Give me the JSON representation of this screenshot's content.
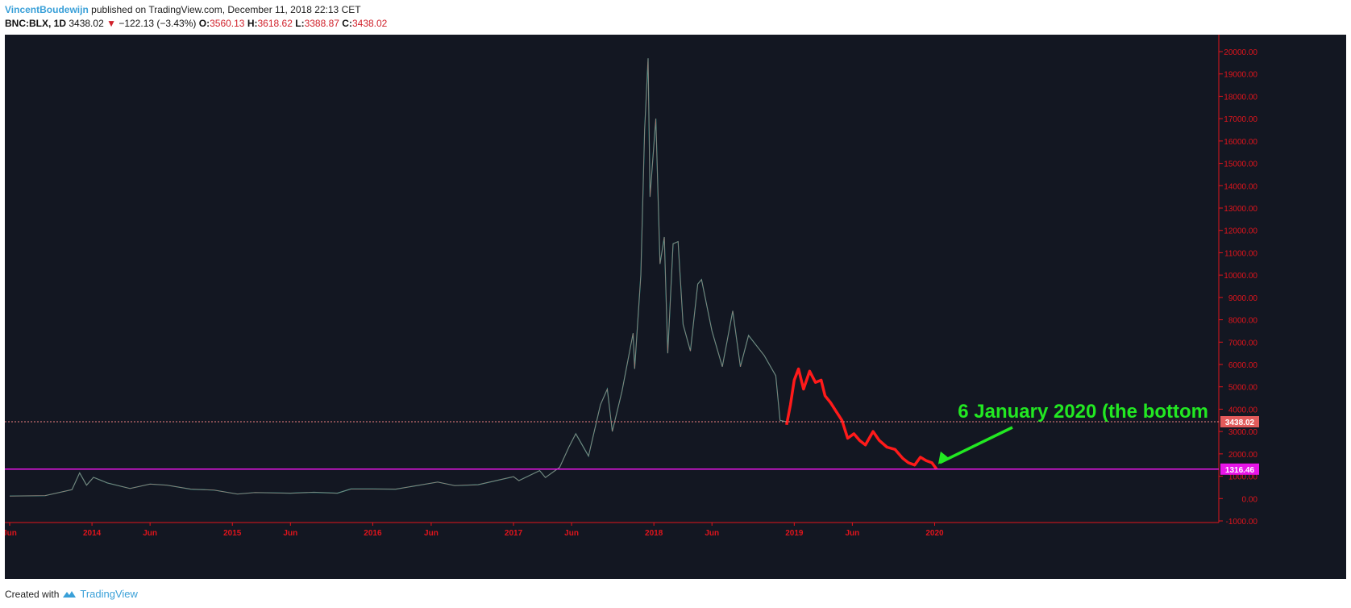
{
  "header": {
    "author": "VincentBoudewijn",
    "published": "published on TradingView.com, December 11, 2018 22:13 CET",
    "symbol": "BNC:BLX, 1D",
    "last": "3438.02",
    "change": "−122.13 (−3.43%)",
    "o_label": "O:",
    "o_value": "3560.13",
    "h_label": "H:",
    "h_value": "3618.62",
    "l_label": "L:",
    "l_value": "3388.87",
    "c_label": "C:",
    "c_value": "3438.02"
  },
  "footer": {
    "created_with": "Created with",
    "brand": "TradingView"
  },
  "colors": {
    "background": "#131722",
    "axis_red": "#e0141c",
    "projection": "#ff1a1a",
    "annotation": "#22e822",
    "support_line": "#e815e8",
    "price_line": "#f08080"
  },
  "chart_data": {
    "type": "line",
    "x_axis_type": "date",
    "y_range": [
      -1000,
      20000
    ],
    "x_range": [
      "2013-06-01",
      "2020-06-01"
    ],
    "y_ticks": [
      "20000.00",
      "19000.00",
      "18000.00",
      "17000.00",
      "16000.00",
      "15000.00",
      "14000.00",
      "13000.00",
      "12000.00",
      "11000.00",
      "10000.00",
      "9000.00",
      "8000.00",
      "7000.00",
      "6000.00",
      "5000.00",
      "4000.00",
      "3000.00",
      "2000.00",
      "1000.00",
      "0.00",
      "-1000.00"
    ],
    "x_ticks": [
      {
        "label": "Jun",
        "date": "2013-06-01"
      },
      {
        "label": "2014",
        "date": "2014-01-01"
      },
      {
        "label": "Jun",
        "date": "2014-06-01"
      },
      {
        "label": "2015",
        "date": "2015-01-01"
      },
      {
        "label": "Jun",
        "date": "2015-06-01"
      },
      {
        "label": "2016",
        "date": "2016-01-01"
      },
      {
        "label": "Jun",
        "date": "2016-06-01"
      },
      {
        "label": "2017",
        "date": "2017-01-01"
      },
      {
        "label": "Jun",
        "date": "2017-06-01"
      },
      {
        "label": "2018",
        "date": "2018-01-01"
      },
      {
        "label": "Jun",
        "date": "2018-06-01"
      },
      {
        "label": "2019",
        "date": "2019-01-01"
      },
      {
        "label": "Jun",
        "date": "2019-06-01"
      },
      {
        "label": "2020",
        "date": "2020-01-01"
      }
    ],
    "series": [
      {
        "role": "price",
        "points": [
          [
            "2013-06-01",
            110
          ],
          [
            "2013-09-01",
            130
          ],
          [
            "2013-11-10",
            400
          ],
          [
            "2013-11-30",
            1150
          ],
          [
            "2013-12-18",
            600
          ],
          [
            "2014-01-05",
            950
          ],
          [
            "2014-02-10",
            700
          ],
          [
            "2014-04-10",
            450
          ],
          [
            "2014-06-01",
            650
          ],
          [
            "2014-07-15",
            600
          ],
          [
            "2014-09-15",
            420
          ],
          [
            "2014-11-15",
            380
          ],
          [
            "2015-01-14",
            200
          ],
          [
            "2015-03-01",
            270
          ],
          [
            "2015-06-01",
            240
          ],
          [
            "2015-08-01",
            280
          ],
          [
            "2015-10-01",
            240
          ],
          [
            "2015-11-05",
            430
          ],
          [
            "2016-01-01",
            430
          ],
          [
            "2016-03-01",
            420
          ],
          [
            "2016-06-18",
            740
          ],
          [
            "2016-08-01",
            580
          ],
          [
            "2016-10-01",
            620
          ],
          [
            "2017-01-01",
            980
          ],
          [
            "2017-01-15",
            800
          ],
          [
            "2017-03-10",
            1250
          ],
          [
            "2017-03-25",
            940
          ],
          [
            "2017-05-01",
            1400
          ],
          [
            "2017-05-25",
            2300
          ],
          [
            "2017-06-12",
            2900
          ],
          [
            "2017-07-15",
            1900
          ],
          [
            "2017-08-15",
            4200
          ],
          [
            "2017-09-02",
            4900
          ],
          [
            "2017-09-15",
            3000
          ],
          [
            "2017-10-10",
            4800
          ],
          [
            "2017-11-08",
            7400
          ],
          [
            "2017-11-12",
            5800
          ],
          [
            "2017-11-28",
            10000
          ],
          [
            "2017-12-08",
            16500
          ],
          [
            "2017-12-17",
            19700
          ],
          [
            "2017-12-22",
            13500
          ],
          [
            "2018-01-06",
            17000
          ],
          [
            "2018-01-17",
            10500
          ],
          [
            "2018-01-28",
            11700
          ],
          [
            "2018-02-06",
            6500
          ],
          [
            "2018-02-20",
            11400
          ],
          [
            "2018-03-05",
            11500
          ],
          [
            "2018-03-18",
            7800
          ],
          [
            "2018-04-06",
            6600
          ],
          [
            "2018-04-25",
            9600
          ],
          [
            "2018-05-05",
            9800
          ],
          [
            "2018-06-01",
            7500
          ],
          [
            "2018-06-28",
            5900
          ],
          [
            "2018-07-25",
            8400
          ],
          [
            "2018-08-14",
            5900
          ],
          [
            "2018-09-04",
            7300
          ],
          [
            "2018-10-15",
            6400
          ],
          [
            "2018-11-14",
            5500
          ],
          [
            "2018-11-25",
            3500
          ],
          [
            "2018-12-11",
            3438.02
          ]
        ]
      },
      {
        "role": "projection",
        "points": [
          [
            "2018-12-12",
            3300
          ],
          [
            "2018-12-22",
            4200
          ],
          [
            "2019-01-01",
            5300
          ],
          [
            "2019-01-12",
            5800
          ],
          [
            "2019-01-25",
            4900
          ],
          [
            "2019-02-10",
            5700
          ],
          [
            "2019-02-25",
            5200
          ],
          [
            "2019-03-12",
            5300
          ],
          [
            "2019-03-22",
            4600
          ],
          [
            "2019-04-05",
            4300
          ],
          [
            "2019-04-20",
            3900
          ],
          [
            "2019-05-05",
            3500
          ],
          [
            "2019-05-20",
            2700
          ],
          [
            "2019-06-05",
            2900
          ],
          [
            "2019-06-20",
            2600
          ],
          [
            "2019-07-05",
            2400
          ],
          [
            "2019-07-25",
            3000
          ],
          [
            "2019-08-10",
            2600
          ],
          [
            "2019-08-30",
            2300
          ],
          [
            "2019-09-20",
            2200
          ],
          [
            "2019-10-10",
            1800
          ],
          [
            "2019-10-25",
            1600
          ],
          [
            "2019-11-10",
            1500
          ],
          [
            "2019-11-25",
            1850
          ],
          [
            "2019-12-10",
            1700
          ],
          [
            "2019-12-25",
            1600
          ],
          [
            "2020-01-06",
            1316
          ]
        ]
      }
    ],
    "price_line": {
      "value": 3438.02,
      "label": "3438.02"
    },
    "support_line": {
      "value": 1316.46,
      "label": "1316.46"
    },
    "annotation": {
      "text": "6 January 2020 (the bottom",
      "arrow_to": [
        "2020-01-06",
        1316
      ]
    }
  }
}
